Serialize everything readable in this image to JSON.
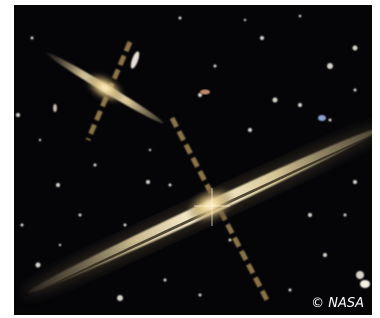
{
  "credit": "© NASA"
}
